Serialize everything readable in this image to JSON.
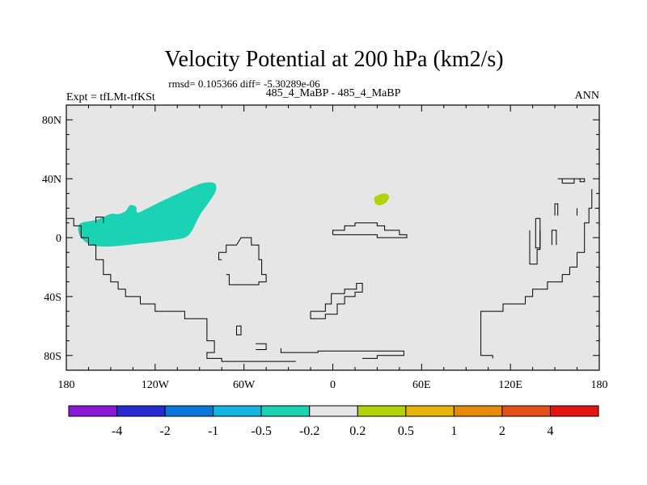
{
  "chart_data": {
    "type": "heatmap",
    "title": "Velocity Potential at 200 hPa (km2/s)",
    "stats_label": "rmsd= 0.105366 diff= -5.30289e-06",
    "left_label": "Expt = tfLMt-tfKSt",
    "center_label": "485_4_MaBP - 485_4_MaBP",
    "right_label": "ANN",
    "xlim": [
      -180,
      180
    ],
    "ylim": [
      -90,
      90
    ],
    "x_ticks": [
      {
        "value": -180,
        "label": "180"
      },
      {
        "value": -120,
        "label": "120W"
      },
      {
        "value": -60,
        "label": "60W"
      },
      {
        "value": 0,
        "label": "0"
      },
      {
        "value": 60,
        "label": "60E"
      },
      {
        "value": 120,
        "label": "120E"
      },
      {
        "value": 180,
        "label": "180"
      }
    ],
    "y_ticks": [
      {
        "value": 80,
        "label": "80N"
      },
      {
        "value": 40,
        "label": "40N"
      },
      {
        "value": 0,
        "label": "0"
      },
      {
        "value": -40,
        "label": "40S"
      },
      {
        "value": -80,
        "label": "80S"
      }
    ],
    "colorbar": {
      "colors": [
        "#8a1ad8",
        "#2a2ad2",
        "#0a78d8",
        "#16b4e0",
        "#1ad2b4",
        "#e6e6e6",
        "#b4d20a",
        "#e6b40a",
        "#e68a0a",
        "#e6501a",
        "#e61414"
      ],
      "labels": [
        "-4",
        "-2",
        "-1",
        "-0.5",
        "-0.2",
        "0.2",
        "0.5",
        "1",
        "2",
        "4"
      ]
    },
    "background_color": "#e6e6e6",
    "regions": [
      {
        "name": "negative-anomaly-pacific",
        "color": "#1ad2b4",
        "level": "-0.5 to -0.2",
        "points": [
          [
            -170,
            10
          ],
          [
            -160,
            12
          ],
          [
            -150,
            16
          ],
          [
            -145,
            16
          ],
          [
            -140,
            18
          ],
          [
            -137,
            22
          ],
          [
            -133,
            21
          ],
          [
            -132,
            17
          ],
          [
            -127,
            19
          ],
          [
            -115,
            25
          ],
          [
            -100,
            32
          ],
          [
            -88,
            37
          ],
          [
            -80,
            37
          ],
          [
            -79,
            32
          ],
          [
            -83,
            25
          ],
          [
            -90,
            15
          ],
          [
            -95,
            5
          ],
          [
            -100,
            0
          ],
          [
            -112,
            -2
          ],
          [
            -130,
            -4
          ],
          [
            -150,
            -6
          ],
          [
            -163,
            -5
          ],
          [
            -170,
            0
          ],
          [
            -172,
            6
          ]
        ]
      },
      {
        "name": "positive-anomaly-asia",
        "color": "#b4d20a",
        "level": "0.2 to 0.5",
        "points": [
          [
            28,
            27
          ],
          [
            31,
            29
          ],
          [
            35,
            30
          ],
          [
            38,
            28
          ],
          [
            36,
            24
          ],
          [
            32,
            22
          ],
          [
            29,
            23
          ]
        ]
      }
    ],
    "coastlines": [
      [
        [
          -180,
          13
        ],
        [
          -175,
          13
        ],
        [
          -175,
          8
        ],
        [
          -170,
          8
        ],
        [
          -170,
          0
        ],
        [
          -165,
          0
        ],
        [
          -165,
          -5
        ],
        [
          -160,
          -5
        ],
        [
          -160,
          -15
        ],
        [
          -155,
          -15
        ],
        [
          -155,
          -25
        ],
        [
          -150,
          -25
        ],
        [
          -150,
          -30
        ],
        [
          -145,
          -30
        ],
        [
          -145,
          -35
        ],
        [
          -140,
          -35
        ],
        [
          -140,
          -40
        ],
        [
          -130,
          -40
        ],
        [
          -130,
          -45
        ],
        [
          -120,
          -45
        ],
        [
          -120,
          -50
        ],
        [
          -100,
          -50
        ],
        [
          -100,
          -55
        ],
        [
          -85,
          -55
        ],
        [
          -85,
          -70
        ],
        [
          -80,
          -70
        ],
        [
          -80,
          -78
        ],
        [
          -85,
          -78
        ],
        [
          -85,
          -82
        ],
        [
          -75,
          -82
        ],
        [
          -75,
          -84
        ],
        [
          -25,
          -84
        ]
      ],
      [
        [
          -160,
          10
        ],
        [
          -160,
          14
        ],
        [
          -155,
          14
        ],
        [
          -155,
          10
        ]
      ],
      [
        [
          -75,
          -15
        ],
        [
          -77,
          -15
        ],
        [
          -77,
          -10
        ],
        [
          -72,
          -10
        ],
        [
          -72,
          -5
        ],
        [
          -65,
          -5
        ],
        [
          -62,
          0
        ],
        [
          -55,
          0
        ],
        [
          -55,
          -5
        ],
        [
          -50,
          -5
        ],
        [
          -50,
          -15
        ],
        [
          -48,
          -15
        ],
        [
          -48,
          -25
        ],
        [
          -45,
          -25
        ],
        [
          -45,
          -30
        ],
        [
          -50,
          -30
        ],
        [
          -50,
          -32
        ],
        [
          -70,
          -32
        ],
        [
          -70,
          -25
        ],
        [
          -72,
          -25
        ]
      ],
      [
        [
          -65,
          -60
        ],
        [
          -62,
          -60
        ],
        [
          -62,
          -66
        ],
        [
          -65,
          -66
        ],
        [
          -65,
          -60
        ]
      ],
      [
        [
          -52,
          -72
        ],
        [
          -45,
          -72
        ],
        [
          -45,
          -76
        ],
        [
          -52,
          -76
        ]
      ],
      [
        [
          -35,
          -75
        ],
        [
          -35,
          -78
        ],
        [
          -10,
          -78
        ],
        [
          -10,
          -77
        ],
        [
          48,
          -77
        ],
        [
          48,
          -80
        ],
        [
          30,
          -80
        ],
        [
          30,
          -82
        ],
        [
          20,
          -82
        ]
      ],
      [
        [
          -15,
          -50
        ],
        [
          -5,
          -50
        ],
        [
          -5,
          -45
        ],
        [
          -1,
          -45
        ],
        [
          -1,
          -38
        ],
        [
          8,
          -38
        ],
        [
          8,
          -35
        ],
        [
          16,
          -35
        ],
        [
          16,
          -31
        ],
        [
          20,
          -31
        ],
        [
          20,
          -37
        ],
        [
          15,
          -37
        ],
        [
          15,
          -40
        ],
        [
          8,
          -40
        ],
        [
          8,
          -45
        ],
        [
          3,
          -45
        ],
        [
          3,
          -52
        ],
        [
          -5,
          -52
        ],
        [
          -5,
          -55
        ],
        [
          -15,
          -55
        ],
        [
          -15,
          -50
        ]
      ],
      [
        [
          0,
          2
        ],
        [
          0,
          5
        ],
        [
          8,
          5
        ],
        [
          8,
          8
        ],
        [
          15,
          8
        ],
        [
          15,
          10
        ],
        [
          30,
          10
        ],
        [
          30,
          8
        ],
        [
          35,
          8
        ],
        [
          35,
          5
        ],
        [
          45,
          5
        ],
        [
          45,
          2
        ],
        [
          50,
          2
        ],
        [
          50,
          0
        ],
        [
          30,
          0
        ],
        [
          30,
          2
        ],
        [
          0,
          2
        ]
      ],
      [
        [
          108,
          -82
        ],
        [
          108,
          -80
        ],
        [
          100,
          -80
        ],
        [
          100,
          -50
        ],
        [
          115,
          -50
        ],
        [
          115,
          -45
        ],
        [
          130,
          -45
        ],
        [
          130,
          -40
        ],
        [
          135,
          -40
        ],
        [
          135,
          -35
        ],
        [
          145,
          -35
        ],
        [
          145,
          -30
        ],
        [
          155,
          -30
        ],
        [
          155,
          -25
        ],
        [
          160,
          -25
        ],
        [
          160,
          -20
        ],
        [
          165,
          -20
        ],
        [
          165,
          -10
        ],
        [
          170,
          -10
        ],
        [
          170,
          10
        ],
        [
          173,
          10
        ],
        [
          173,
          20
        ],
        [
          175,
          20
        ],
        [
          175,
          33
        ]
      ],
      [
        [
          177,
          20
        ],
        [
          180,
          20
        ]
      ],
      [
        [
          140,
          5
        ],
        [
          140,
          -8
        ],
        [
          138,
          -8
        ],
        [
          138,
          -18
        ],
        [
          133,
          -18
        ],
        [
          133,
          5
        ]
      ],
      [
        [
          137,
          13
        ],
        [
          140,
          13
        ],
        [
          140,
          -7
        ],
        [
          137,
          -7
        ],
        [
          137,
          13
        ]
      ],
      [
        [
          148,
          -5
        ],
        [
          148,
          5
        ],
        [
          151,
          5
        ],
        [
          151,
          -5
        ]
      ],
      [
        [
          150,
          15
        ],
        [
          150,
          23
        ],
        [
          152,
          23
        ],
        [
          152,
          15
        ]
      ],
      [
        [
          165,
          15
        ],
        [
          165,
          20
        ]
      ],
      [
        [
          152,
          40
        ],
        [
          167,
          40
        ],
        [
          167,
          38
        ],
        [
          170,
          38
        ],
        [
          170,
          40
        ],
        [
          163,
          40
        ],
        [
          163,
          37
        ],
        [
          155,
          37
        ],
        [
          155,
          40
        ]
      ]
    ]
  }
}
